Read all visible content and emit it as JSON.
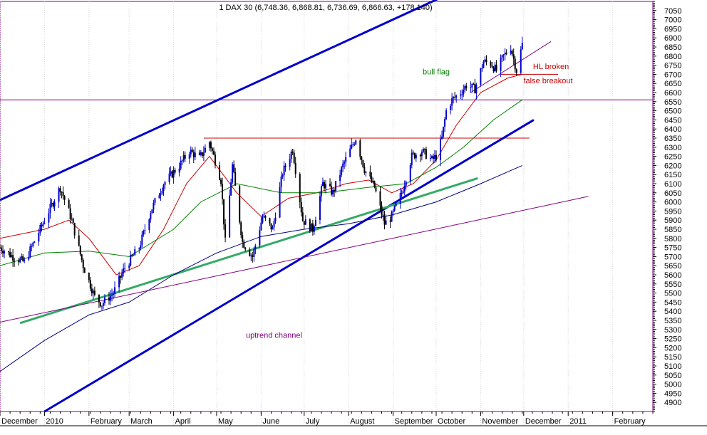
{
  "chart_data": {
    "type": "candlestick",
    "title": "1 DAX 30 (6,748.36, 6,868.81, 6,736.69, 6,866.63, +178.140)",
    "ylim": [
      4850,
      7100
    ],
    "y_ticks": [
      4900,
      4950,
      5000,
      5050,
      5100,
      5150,
      5200,
      5250,
      5300,
      5350,
      5400,
      5450,
      5500,
      5550,
      5600,
      5650,
      5700,
      5750,
      5800,
      5850,
      5900,
      5950,
      6000,
      6050,
      6100,
      6150,
      6200,
      6250,
      6300,
      6350,
      6400,
      6450,
      6500,
      6550,
      6600,
      6650,
      6700,
      6750,
      6800,
      6850,
      6900,
      6950,
      7000,
      7050
    ],
    "x_ticks": [
      {
        "label": "December",
        "date": "2009-12-01"
      },
      {
        "label": "2010",
        "date": "2010-01-01"
      },
      {
        "label": "February",
        "date": "2010-02-01"
      },
      {
        "label": "March",
        "date": "2010-03-01"
      },
      {
        "label": "April",
        "date": "2010-04-01"
      },
      {
        "label": "May",
        "date": "2010-05-01"
      },
      {
        "label": "June",
        "date": "2010-06-01"
      },
      {
        "label": "July",
        "date": "2010-07-01"
      },
      {
        "label": "August",
        "date": "2010-08-01"
      },
      {
        "label": "September",
        "date": "2010-09-01"
      },
      {
        "label": "October",
        "date": "2010-10-01"
      },
      {
        "label": "November",
        "date": "2010-11-01"
      },
      {
        "label": "December",
        "date": "2010-12-01"
      },
      {
        "label": "2011",
        "date": "2011-01-01"
      },
      {
        "label": "February",
        "date": "2011-02-01"
      }
    ],
    "price_path": [
      [
        "2009-12-01",
        5750
      ],
      [
        "2009-12-10",
        5700
      ],
      [
        "2009-12-18",
        5670
      ],
      [
        "2010-01-01",
        5900
      ],
      [
        "2010-01-12",
        6080
      ],
      [
        "2010-01-20",
        5900
      ],
      [
        "2010-01-28",
        5650
      ],
      [
        "2010-02-05",
        5480
      ],
      [
        "2010-02-10",
        5440
      ],
      [
        "2010-02-18",
        5500
      ],
      [
        "2010-02-26",
        5640
      ],
      [
        "2010-03-08",
        5750
      ],
      [
        "2010-03-16",
        5950
      ],
      [
        "2010-03-25",
        6100
      ],
      [
        "2010-04-05",
        6200
      ],
      [
        "2010-04-12",
        6280
      ],
      [
        "2010-04-19",
        6240
      ],
      [
        "2010-04-26",
        6330
      ],
      [
        "2010-05-04",
        6120
      ],
      [
        "2010-05-07",
        5780
      ],
      [
        "2010-05-12",
        6200
      ],
      [
        "2010-05-19",
        5780
      ],
      [
        "2010-05-26",
        5700
      ],
      [
        "2010-06-02",
        5920
      ],
      [
        "2010-06-09",
        5850
      ],
      [
        "2010-06-16",
        6160
      ],
      [
        "2010-06-23",
        6290
      ],
      [
        "2010-06-30",
        5900
      ],
      [
        "2010-07-07",
        5850
      ],
      [
        "2010-07-14",
        6100
      ],
      [
        "2010-07-21",
        6050
      ],
      [
        "2010-07-28",
        6200
      ],
      [
        "2010-08-06",
        6350
      ],
      [
        "2010-08-12",
        6180
      ],
      [
        "2010-08-19",
        6080
      ],
      [
        "2010-08-26",
        5880
      ],
      [
        "2010-08-31",
        5920
      ],
      [
        "2010-09-07",
        6050
      ],
      [
        "2010-09-14",
        6250
      ],
      [
        "2010-09-21",
        6280
      ],
      [
        "2010-09-28",
        6230
      ],
      [
        "2010-10-01",
        6250
      ],
      [
        "2010-10-05",
        6350
      ],
      [
        "2010-10-08",
        6500
      ],
      [
        "2010-10-12",
        6560
      ],
      [
        "2010-10-18",
        6600
      ],
      [
        "2010-10-22",
        6640
      ],
      [
        "2010-10-28",
        6620
      ],
      [
        "2010-11-03",
        6770
      ],
      [
        "2010-11-08",
        6760
      ],
      [
        "2010-11-12",
        6720
      ],
      [
        "2010-11-17",
        6800
      ],
      [
        "2010-11-22",
        6850
      ],
      [
        "2010-11-26",
        6720
      ],
      [
        "2010-11-30",
        6866
      ]
    ],
    "moving_averages": [
      {
        "color": "#cc0000",
        "points": [
          [
            "2009-12-01",
            5800
          ],
          [
            "2010-01-01",
            5850
          ],
          [
            "2010-01-18",
            5900
          ],
          [
            "2010-02-01",
            5800
          ],
          [
            "2010-02-20",
            5600
          ],
          [
            "2010-03-08",
            5650
          ],
          [
            "2010-03-25",
            5850
          ],
          [
            "2010-04-10",
            6100
          ],
          [
            "2010-04-26",
            6250
          ],
          [
            "2010-05-15",
            6050
          ],
          [
            "2010-06-01",
            5920
          ],
          [
            "2010-06-20",
            6020
          ],
          [
            "2010-07-10",
            6050
          ],
          [
            "2010-07-30",
            6100
          ],
          [
            "2010-08-15",
            6120
          ],
          [
            "2010-08-31",
            6050
          ],
          [
            "2010-09-15",
            6100
          ],
          [
            "2010-10-01",
            6230
          ],
          [
            "2010-10-15",
            6420
          ],
          [
            "2010-11-01",
            6600
          ],
          [
            "2010-11-20",
            6680
          ],
          [
            "2010-11-30",
            6700
          ]
        ]
      },
      {
        "color": "#008000",
        "points": [
          [
            "2009-12-01",
            5650
          ],
          [
            "2010-01-01",
            5720
          ],
          [
            "2010-02-01",
            5730
          ],
          [
            "2010-03-01",
            5700
          ],
          [
            "2010-04-01",
            5850
          ],
          [
            "2010-04-20",
            6000
          ],
          [
            "2010-05-15",
            6100
          ],
          [
            "2010-06-15",
            6050
          ],
          [
            "2010-07-15",
            6050
          ],
          [
            "2010-08-15",
            6080
          ],
          [
            "2010-09-10",
            6100
          ],
          [
            "2010-10-01",
            6190
          ],
          [
            "2010-10-20",
            6300
          ],
          [
            "2010-11-10",
            6450
          ],
          [
            "2010-11-30",
            6560
          ]
        ]
      },
      {
        "color": "#000080",
        "points": [
          [
            "2009-12-01",
            5070
          ],
          [
            "2010-01-01",
            5240
          ],
          [
            "2010-02-01",
            5380
          ],
          [
            "2010-03-01",
            5450
          ],
          [
            "2010-04-01",
            5600
          ],
          [
            "2010-05-01",
            5720
          ],
          [
            "2010-06-01",
            5810
          ],
          [
            "2010-07-01",
            5850
          ],
          [
            "2010-08-01",
            5880
          ],
          [
            "2010-09-01",
            5930
          ],
          [
            "2010-10-01",
            6000
          ],
          [
            "2010-11-01",
            6100
          ],
          [
            "2010-11-30",
            6200
          ]
        ]
      }
    ],
    "trend_lines": [
      {
        "color": "#0000cc",
        "width": 3,
        "points": [
          [
            "2009-12-01",
            6010
          ],
          [
            "2010-12-01",
            7330
          ]
        ]
      },
      {
        "color": "#0000cc",
        "width": 3,
        "points": [
          [
            "2010-01-01",
            4850
          ],
          [
            "2010-12-08",
            6450
          ]
        ]
      },
      {
        "color": "#33aa66",
        "width": 3,
        "points": [
          [
            "2009-12-15",
            5335
          ],
          [
            "2010-10-30",
            6130
          ]
        ]
      },
      {
        "color": "#800080",
        "width": 1,
        "points": [
          [
            "2009-12-01",
            5340
          ],
          [
            "2011-01-15",
            6030
          ]
        ]
      },
      {
        "color": "#800080",
        "width": 1,
        "points": [
          [
            "2010-10-25",
            6600
          ],
          [
            "2010-12-20",
            6880
          ]
        ]
      }
    ],
    "horizontal_lines": [
      {
        "value": 6560,
        "color": "#800080"
      },
      {
        "value": 6350,
        "color": "#cc0000",
        "from": "2010-04-22",
        "to": "2010-12-05"
      },
      {
        "value": 6700,
        "color": "#cc0000",
        "from": "2010-11-15",
        "to": "2010-12-25"
      }
    ],
    "annotations": [
      {
        "text": "bull flag",
        "date": "2010-10-01",
        "value": 6700,
        "color": "#008000"
      },
      {
        "text": "HL broken",
        "date": "2010-12-20",
        "value": 6728,
        "color": "#cc0000"
      },
      {
        "text": "false breakout",
        "date": "2010-12-18",
        "value": 6650,
        "color": "#cc0000"
      },
      {
        "text": "uptrend channel",
        "date": "2010-06-10",
        "value": 5255,
        "color": "#800080"
      }
    ],
    "x_start": "2009-12-01",
    "x_end": "2011-03-01"
  }
}
